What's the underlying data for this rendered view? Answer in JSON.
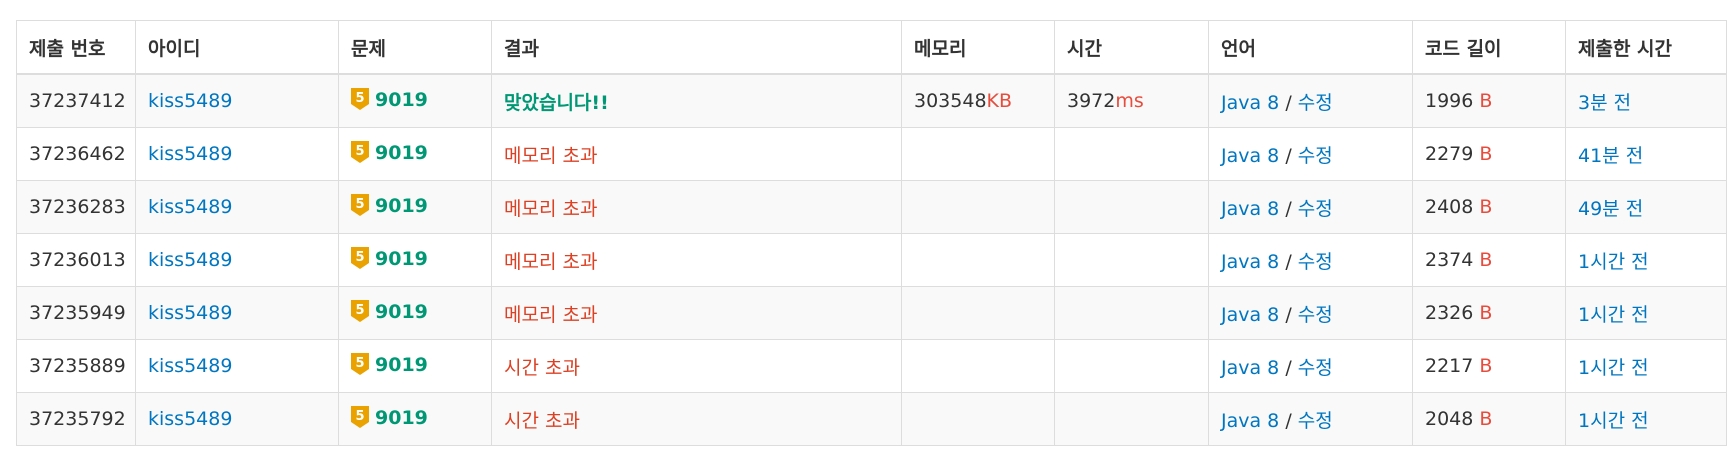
{
  "headers": {
    "submission_id": "제출 번호",
    "user_id": "아이디",
    "problem": "문제",
    "result": "결과",
    "memory": "메모리",
    "time": "시간",
    "language": "언어",
    "code_length": "코드 길이",
    "submitted_at": "제출한 시간"
  },
  "units": {
    "memory": "KB",
    "time": "ms",
    "bytes": "B",
    "slash": "/"
  },
  "tier_badge": {
    "label": "5",
    "color": "#e9a200"
  },
  "rows": [
    {
      "id": "37237412",
      "user": "kiss5489",
      "problem": "9019",
      "result": "맞았습니다!!",
      "result_type": "ac",
      "memory": "303548",
      "time": "3972",
      "lang": "Java 8",
      "edit": "수정",
      "length": "1996",
      "when": "3분 전"
    },
    {
      "id": "37236462",
      "user": "kiss5489",
      "problem": "9019",
      "result": "메모리 초과",
      "result_type": "fail",
      "memory": "",
      "time": "",
      "lang": "Java 8",
      "edit": "수정",
      "length": "2279",
      "when": "41분 전"
    },
    {
      "id": "37236283",
      "user": "kiss5489",
      "problem": "9019",
      "result": "메모리 초과",
      "result_type": "fail",
      "memory": "",
      "time": "",
      "lang": "Java 8",
      "edit": "수정",
      "length": "2408",
      "when": "49분 전"
    },
    {
      "id": "37236013",
      "user": "kiss5489",
      "problem": "9019",
      "result": "메모리 초과",
      "result_type": "fail",
      "memory": "",
      "time": "",
      "lang": "Java 8",
      "edit": "수정",
      "length": "2374",
      "when": "1시간 전"
    },
    {
      "id": "37235949",
      "user": "kiss5489",
      "problem": "9019",
      "result": "메모리 초과",
      "result_type": "fail",
      "memory": "",
      "time": "",
      "lang": "Java 8",
      "edit": "수정",
      "length": "2326",
      "when": "1시간 전"
    },
    {
      "id": "37235889",
      "user": "kiss5489",
      "problem": "9019",
      "result": "시간 초과",
      "result_type": "fail",
      "memory": "",
      "time": "",
      "lang": "Java 8",
      "edit": "수정",
      "length": "2217",
      "when": "1시간 전"
    },
    {
      "id": "37235792",
      "user": "kiss5489",
      "problem": "9019",
      "result": "시간 초과",
      "result_type": "fail",
      "memory": "",
      "time": "",
      "lang": "Java 8",
      "edit": "수정",
      "length": "2048",
      "when": "1시간 전"
    }
  ]
}
